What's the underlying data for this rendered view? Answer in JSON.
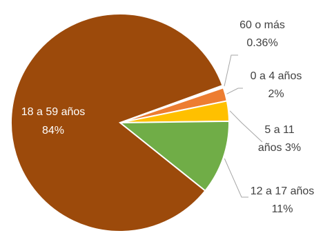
{
  "chart_data": {
    "type": "pie",
    "title": "",
    "slices": [
      {
        "label": "60 o más",
        "pct_text": "0.36%",
        "value": 0.36,
        "color": "#FFFFFF",
        "outline": "#A6A6A6"
      },
      {
        "label": "0 a 4 años",
        "pct_text": "2%",
        "value": 2,
        "color": "#ED7D31"
      },
      {
        "label": "5 a 11 años",
        "pct_text": "3%",
        "value": 3,
        "color": "#FFC000"
      },
      {
        "label": "12 a 17 años",
        "pct_text": "11%",
        "value": 11,
        "color": "#70AD47"
      },
      {
        "label": "18 a 59 años",
        "pct_text": "84%",
        "value": 84,
        "color": "#9C4A0B"
      }
    ],
    "labels": {
      "s0_line1": "60 o más",
      "s0_line2": "0.36%",
      "s1_line1": "0 a 4 años",
      "s1_line2": "2%",
      "s2_line1": "5 a 11",
      "s2_line2": "años 3%",
      "s3_line1": "12 a 17 años",
      "s3_line2": "11%",
      "s4_line1": "18 a 59 años",
      "s4_line2": "84%"
    }
  }
}
